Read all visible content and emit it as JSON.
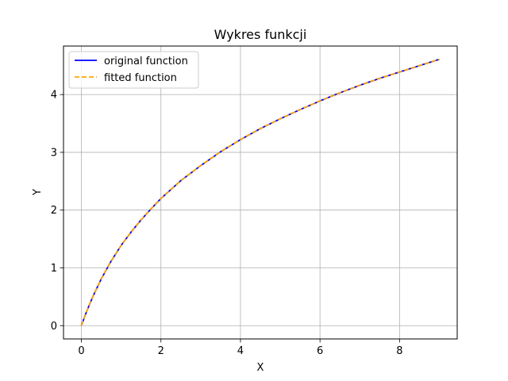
{
  "chart_data": {
    "type": "line",
    "title": "Wykres funkcji",
    "xlabel": "X",
    "ylabel": "Y",
    "xlim": [
      -0.45,
      9.45
    ],
    "ylim": [
      -0.23,
      4.84
    ],
    "xticks": [
      0,
      2,
      4,
      6,
      8
    ],
    "yticks": [
      0,
      1,
      2,
      3,
      4
    ],
    "grid": true,
    "legend_position": "top-left",
    "series": [
      {
        "name": "original function",
        "color": "#0000ff",
        "style": "solid",
        "x": [
          0,
          0.1,
          0.2,
          0.3,
          0.5,
          0.75,
          1,
          1.25,
          1.5,
          1.75,
          2,
          2.5,
          3,
          3.5,
          4,
          4.5,
          5,
          5.5,
          6,
          6.5,
          7,
          7.5,
          8,
          8.5,
          9
        ],
        "y": [
          0,
          0.19,
          0.36,
          0.52,
          0.81,
          1.12,
          1.39,
          1.62,
          1.83,
          2.02,
          2.2,
          2.51,
          2.77,
          3.01,
          3.22,
          3.41,
          3.58,
          3.74,
          3.89,
          4.03,
          4.16,
          4.28,
          4.39,
          4.5,
          4.61
        ]
      },
      {
        "name": "fitted function",
        "color": "#ffa500",
        "style": "dashed",
        "x": [
          0,
          0.1,
          0.2,
          0.3,
          0.5,
          0.75,
          1,
          1.25,
          1.5,
          1.75,
          2,
          2.5,
          3,
          3.5,
          4,
          4.5,
          5,
          5.5,
          6,
          6.5,
          7,
          7.5,
          8,
          8.5,
          9
        ],
        "y": [
          0,
          0.19,
          0.36,
          0.52,
          0.81,
          1.12,
          1.39,
          1.62,
          1.83,
          2.02,
          2.2,
          2.51,
          2.77,
          3.01,
          3.22,
          3.41,
          3.58,
          3.74,
          3.89,
          4.03,
          4.16,
          4.28,
          4.39,
          4.5,
          4.61
        ]
      }
    ]
  }
}
